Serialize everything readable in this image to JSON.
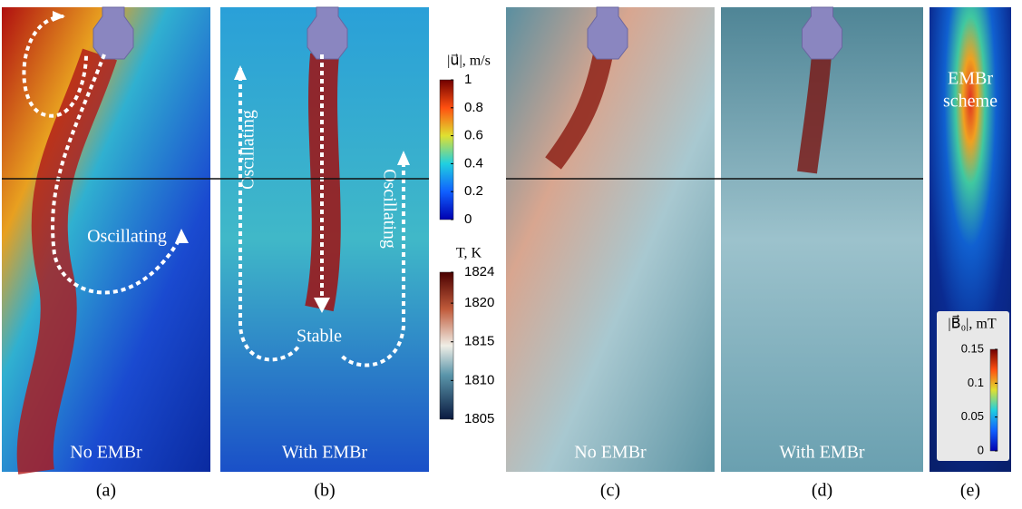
{
  "panels": [
    {
      "label": "(a)",
      "caption": "No EMBr",
      "annotations": [
        "Oscillating"
      ]
    },
    {
      "label": "(b)",
      "caption": "With EMBr",
      "annotations": [
        "Oscillating",
        "Stable",
        "Oscillating"
      ]
    },
    {
      "label": "(c)",
      "caption": "No EMBr"
    },
    {
      "label": "(d)",
      "caption": "With EMBr"
    },
    {
      "label": "(e)",
      "annotations": [
        "EMBr",
        "scheme"
      ]
    }
  ],
  "colorbars": [
    {
      "title": "|u⃗|, m/s",
      "ticks": [
        0,
        0.2,
        0.4,
        0.6,
        0.8,
        1
      ]
    },
    {
      "title": "T, K",
      "ticks": [
        1805,
        1810,
        1815,
        1820,
        1824
      ]
    },
    {
      "title": "|B⃗₀|, mT",
      "ticks": [
        0,
        0.05,
        0.1,
        0.15
      ]
    }
  ]
}
